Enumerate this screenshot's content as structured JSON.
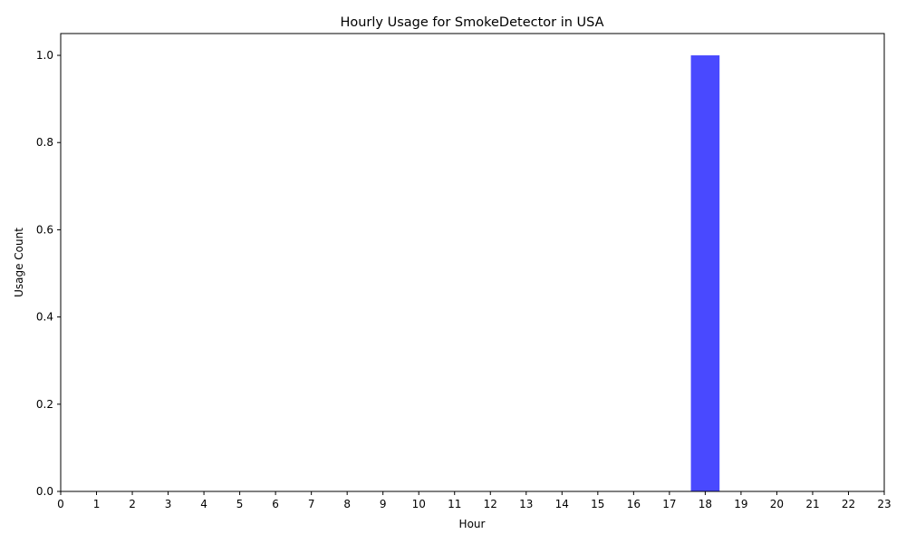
{
  "chart_data": {
    "type": "bar",
    "title": "Hourly Usage for SmokeDetector in USA",
    "xlabel": "Hour",
    "ylabel": "Usage Count",
    "categories": [
      "0",
      "1",
      "2",
      "3",
      "4",
      "5",
      "6",
      "7",
      "8",
      "9",
      "10",
      "11",
      "12",
      "13",
      "14",
      "15",
      "16",
      "17",
      "18",
      "19",
      "20",
      "21",
      "22",
      "23"
    ],
    "values": [
      0,
      0,
      0,
      0,
      0,
      0,
      0,
      0,
      0,
      0,
      0,
      0,
      0,
      0,
      0,
      0,
      0,
      0,
      1,
      0,
      0,
      0,
      0,
      0
    ],
    "ylim": [
      0,
      1.05
    ],
    "yticks": [
      "0.0",
      "0.2",
      "0.4",
      "0.6",
      "0.8",
      "1.0"
    ],
    "bar_color": "#4949ff",
    "grid": false,
    "legend": "none"
  }
}
